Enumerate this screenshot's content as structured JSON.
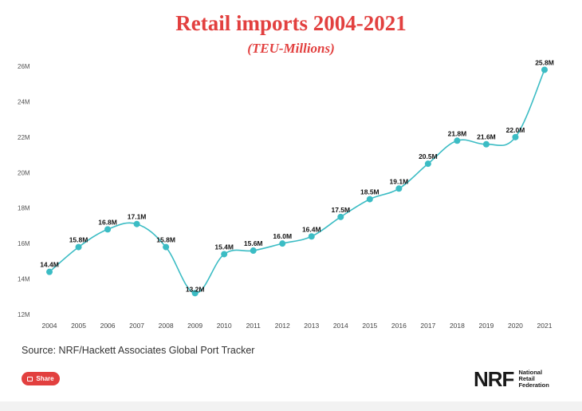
{
  "chart_data": {
    "type": "line",
    "title": "Retail imports 2004-2021",
    "subtitle": "(TEU-Millions)",
    "x": [
      "2004",
      "2005",
      "2006",
      "2007",
      "2008",
      "2009",
      "2010",
      "2011",
      "2012",
      "2013",
      "2014",
      "2015",
      "2016",
      "2017",
      "2018",
      "2019",
      "2020",
      "2021"
    ],
    "series": [
      {
        "values": [
          14.4,
          15.8,
          16.8,
          17.1,
          15.8,
          13.2,
          15.4,
          15.6,
          16.0,
          16.4,
          17.5,
          18.5,
          19.1,
          20.5,
          21.8,
          21.6,
          22.0,
          25.8
        ],
        "labels": [
          "14.4M",
          "15.8M",
          "16.8M",
          "17.1M",
          "15.8M",
          "13.2M",
          "15.4M",
          "15.6M",
          "16.0M",
          "16.4M",
          "17.5M",
          "18.5M",
          "19.1M",
          "20.5M",
          "21.8M",
          "21.6M",
          "22.0M",
          "25.8M"
        ]
      }
    ],
    "yticks": [
      12,
      14,
      16,
      18,
      20,
      22,
      24,
      26
    ],
    "ytick_labels": [
      "12M",
      "14M",
      "16M",
      "18M",
      "20M",
      "22M",
      "24M",
      "26M"
    ],
    "ylim": [
      12,
      26
    ],
    "grid": false,
    "line_color": "#3bbcc4",
    "label_positions": [
      "above",
      "above",
      "above",
      "above",
      "above",
      "below",
      "above",
      "above",
      "above",
      "above",
      "above",
      "above",
      "above",
      "above",
      "above",
      "above",
      "above",
      "above"
    ]
  },
  "source_text": "Source: NRF/Hackett Associates Global Port Tracker",
  "share": {
    "label": "Share"
  },
  "logo": {
    "mark": "NRF",
    "line1": "National",
    "line2": "Retail",
    "line3": "Federation"
  },
  "colors": {
    "accent": "#e2403f"
  }
}
